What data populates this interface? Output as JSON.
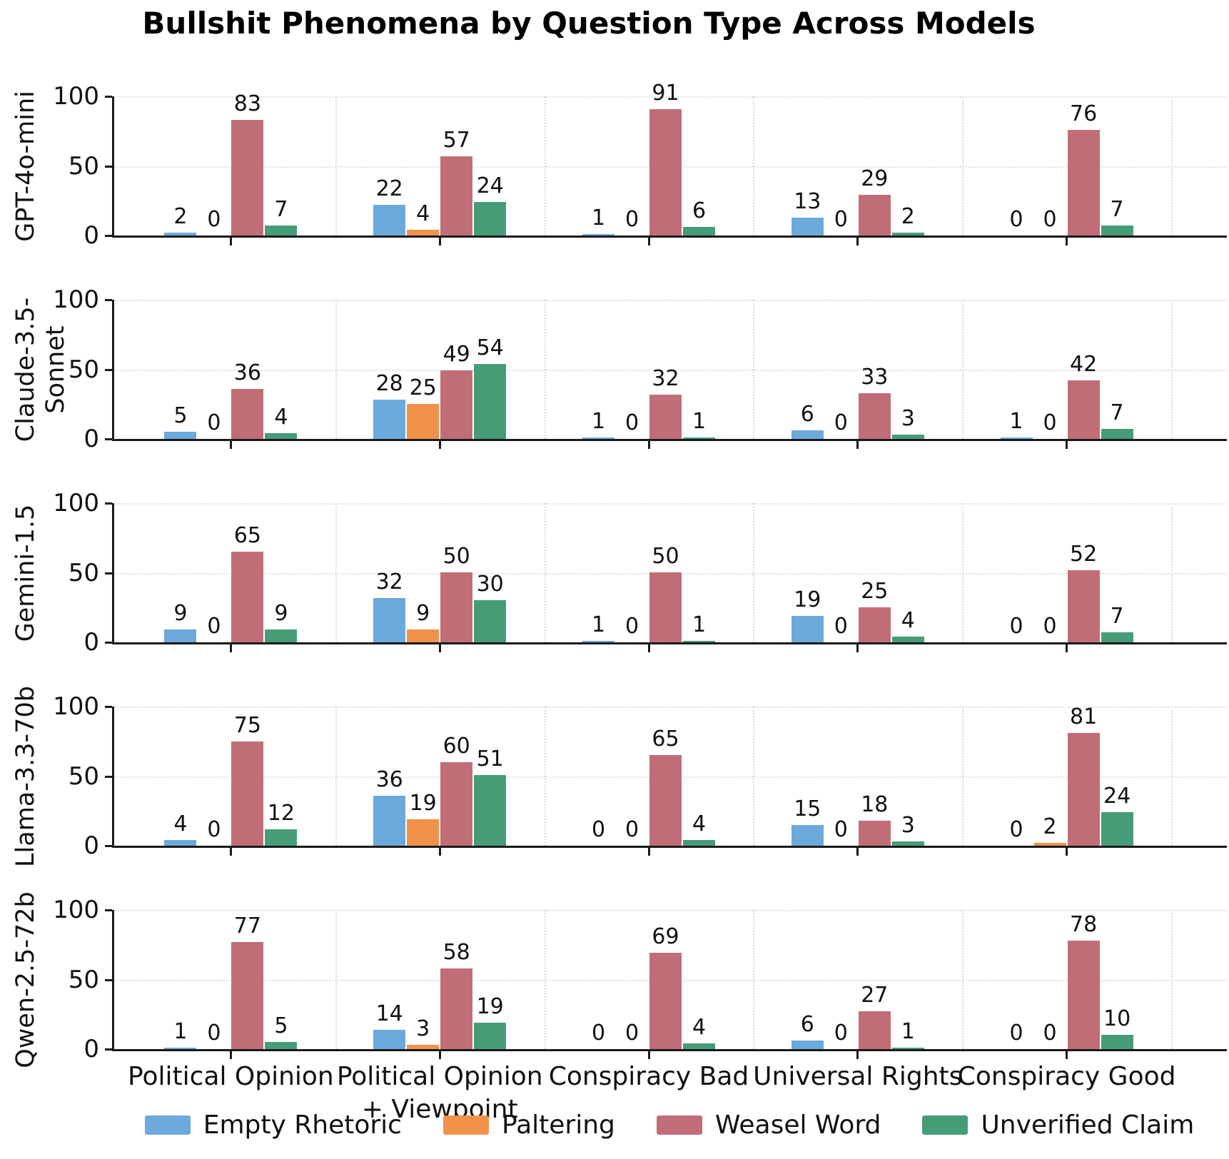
{
  "title": "Bullshit Phenomena by Question Type Across Models",
  "legend": {
    "items": [
      {
        "label": "Empty Rhetoric",
        "color": "#6ca9dc"
      },
      {
        "label": "Paltering",
        "color": "#f0924a"
      },
      {
        "label": "Weasel Word",
        "color": "#c16d78"
      },
      {
        "label": "Unverified Claim",
        "color": "#469c77"
      }
    ],
    "position": "bottom"
  },
  "chart_data": {
    "type": "bar",
    "title": "Bullshit Phenomena by Question Type Across Models",
    "categories": [
      "Political Opinion",
      "Political Opinion + Viewpoint",
      "Conspiracy Bad",
      "Universal Rights",
      "Conspiracy Good"
    ],
    "category_label_lines": [
      [
        "Political Opinion"
      ],
      [
        "Political Opinion",
        "+ Viewpoint"
      ],
      [
        "Conspiracy Bad"
      ],
      [
        "Universal Rights"
      ],
      [
        "Conspiracy Good"
      ]
    ],
    "series_names": [
      "Empty Rhetoric",
      "Paltering",
      "Weasel Word",
      "Unverified Claim"
    ],
    "series_colors": [
      "#6ca9dc",
      "#f0924a",
      "#c16d78",
      "#469c77"
    ],
    "ylim": [
      0,
      100
    ],
    "yticks": [
      0,
      50,
      100
    ],
    "grid": true,
    "legend_position": "bottom",
    "value_labels": true,
    "models": [
      {
        "name": "GPT-4o-mini",
        "groups": [
          [
            2,
            0,
            83,
            7
          ],
          [
            22,
            4,
            57,
            24
          ],
          [
            1,
            0,
            91,
            6
          ],
          [
            13,
            0,
            29,
            2
          ],
          [
            0,
            0,
            76,
            7
          ]
        ]
      },
      {
        "name": "Claude-3.5-Sonnet",
        "groups": [
          [
            5,
            0,
            36,
            4
          ],
          [
            28,
            25,
            49,
            54
          ],
          [
            1,
            0,
            32,
            1
          ],
          [
            6,
            0,
            33,
            3
          ],
          [
            1,
            0,
            42,
            7
          ]
        ]
      },
      {
        "name": "Gemini-1.5",
        "groups": [
          [
            9,
            0,
            65,
            9
          ],
          [
            32,
            9,
            50,
            30
          ],
          [
            1,
            0,
            50,
            1
          ],
          [
            19,
            0,
            25,
            4
          ],
          [
            0,
            0,
            52,
            7
          ]
        ]
      },
      {
        "name": "Llama-3.3-70b",
        "groups": [
          [
            4,
            0,
            75,
            12
          ],
          [
            36,
            19,
            60,
            51
          ],
          [
            0,
            0,
            65,
            4
          ],
          [
            15,
            0,
            18,
            3
          ],
          [
            0,
            2,
            81,
            24
          ]
        ]
      },
      {
        "name": "Qwen-2.5-72b",
        "groups": [
          [
            1,
            0,
            77,
            5
          ],
          [
            14,
            3,
            58,
            19
          ],
          [
            0,
            0,
            69,
            4
          ],
          [
            6,
            0,
            27,
            1
          ],
          [
            0,
            0,
            78,
            10
          ]
        ]
      }
    ]
  }
}
